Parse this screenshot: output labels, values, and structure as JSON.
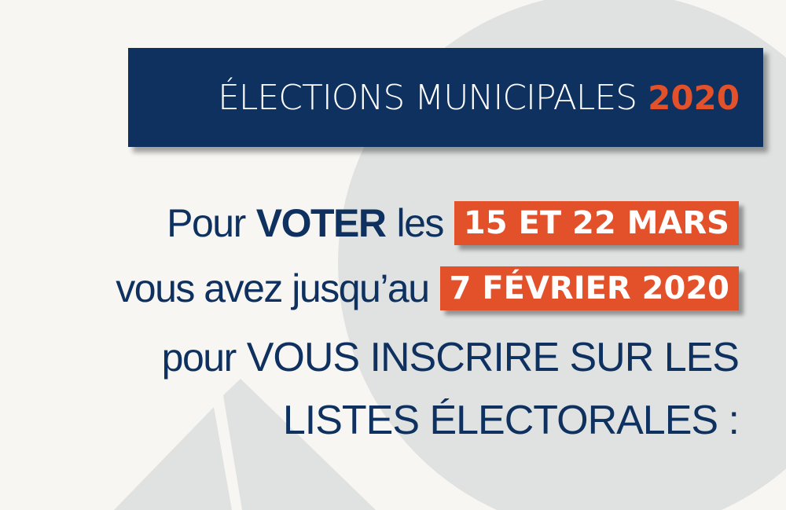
{
  "colors": {
    "navy": "#0e3160",
    "orange": "#e2512a",
    "background": "#f8f6f2",
    "shape_gray": "#dfe2e1"
  },
  "banner": {
    "title": "ÉLECTIONS MUNICIPALES",
    "year": "2020"
  },
  "line1": {
    "pre": "Pour",
    "strong": "VOTER",
    "post": "les",
    "highlight": "15 ET 22 MARS"
  },
  "line2": {
    "pre": "vous avez jusqu’au",
    "highlight": "7 FÉVRIER 2020"
  },
  "line3": {
    "pre": "pour",
    "strong": "VOUS INSCRIRE SUR LES"
  },
  "line4": {
    "strong": "LISTES ÉLECTORALES :"
  }
}
